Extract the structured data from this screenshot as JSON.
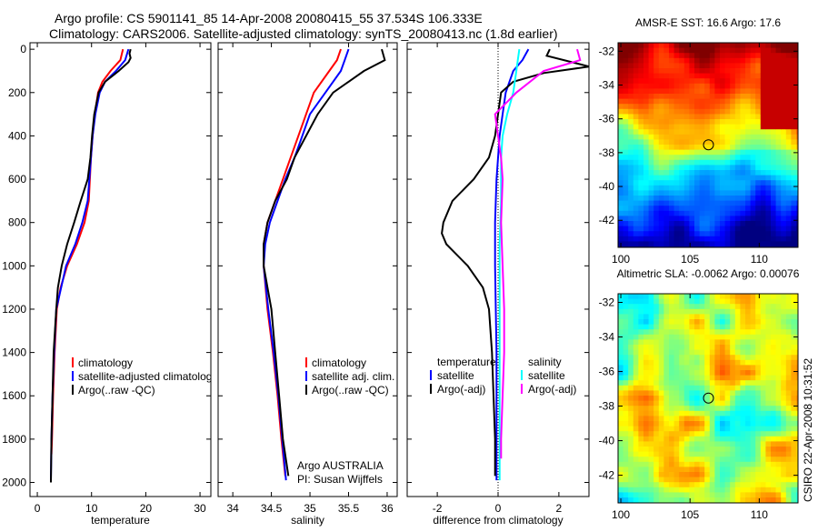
{
  "title": {
    "line1": "Argo profile: CS 5901141_85 14-Apr-2008 20080415_55 37.534S 106.333E",
    "line2": "Climatology: CARS2006. Satellite-adjusted climatology: synTS_20080413.nc (1.8d earlier)"
  },
  "side_label": "CSIRO 22-Apr-2008 10:31:52",
  "colors": {
    "red": "#ff0000",
    "blue": "#0000ff",
    "black": "#000000",
    "cyan": "#00ffff",
    "magenta": "#ff00ff"
  },
  "chart_data": [
    {
      "type": "line",
      "xlabel": "temperature",
      "ylabel": "",
      "xlim": [
        -1.35,
        32
      ],
      "ylim": [
        2065,
        -30
      ],
      "xticks": [
        0,
        10,
        20,
        30
      ],
      "yticks": [
        0,
        200,
        400,
        600,
        800,
        1000,
        1200,
        1400,
        1600,
        1800,
        2000
      ],
      "legend": [
        "climatology",
        "satellite-adjusted climatology",
        "Argo(..raw -QC)"
      ],
      "series": [
        {
          "name": "climatology",
          "color": "#ff0000",
          "points": [
            [
              15.8,
              0
            ],
            [
              15.3,
              50
            ],
            [
              13.5,
              100
            ],
            [
              12,
              150
            ],
            [
              11.2,
              200
            ],
            [
              10.6,
              300
            ],
            [
              10.2,
              400
            ],
            [
              9.9,
              500
            ],
            [
              9.7,
              600
            ],
            [
              9.5,
              700
            ],
            [
              8.7,
              800
            ],
            [
              7.3,
              900
            ],
            [
              5.5,
              1000
            ],
            [
              4.3,
              1100
            ],
            [
              3.6,
              1200
            ],
            [
              3.2,
              1400
            ],
            [
              2.9,
              1600
            ],
            [
              2.7,
              1800
            ],
            [
              2.6,
              1870
            ]
          ]
        },
        {
          "name": "satellite-adjusted climatology",
          "color": "#0000ff",
          "points": [
            [
              16.8,
              0
            ],
            [
              16.2,
              50
            ],
            [
              14.5,
              100
            ],
            [
              12.5,
              150
            ],
            [
              11.5,
              200
            ],
            [
              10.7,
              300
            ],
            [
              10.2,
              400
            ],
            [
              9.9,
              500
            ],
            [
              9.6,
              600
            ],
            [
              9.3,
              700
            ],
            [
              8.3,
              800
            ],
            [
              7,
              900
            ],
            [
              5.3,
              1000
            ],
            [
              3.5,
              1200
            ],
            [
              3.1,
              1400
            ],
            [
              2.8,
              1600
            ],
            [
              2.6,
              1800
            ],
            [
              2.5,
              1990
            ]
          ]
        },
        {
          "name": "Argo(..raw -QC)",
          "color": "#000000",
          "points": [
            [
              17.2,
              0
            ],
            [
              17,
              20
            ],
            [
              17.2,
              40
            ],
            [
              16.8,
              60
            ],
            [
              15,
              100
            ],
            [
              12.5,
              150
            ],
            [
              11.3,
              200
            ],
            [
              10.5,
              300
            ],
            [
              10.1,
              400
            ],
            [
              9.8,
              500
            ],
            [
              9.3,
              600
            ],
            [
              8,
              700
            ],
            [
              6.8,
              800
            ],
            [
              5.5,
              900
            ],
            [
              4.5,
              1000
            ],
            [
              3.8,
              1100
            ],
            [
              3.5,
              1200
            ],
            [
              3,
              1400
            ],
            [
              2.8,
              1600
            ],
            [
              2.6,
              1800
            ],
            [
              2.5,
              2000
            ]
          ]
        }
      ]
    },
    {
      "type": "line",
      "xlabel": "salinity",
      "xlim": [
        33.81,
        36.13
      ],
      "ylim": [
        2065,
        -30
      ],
      "xticks": [
        34,
        34.5,
        35,
        35.5,
        36
      ],
      "yticks": [
        0,
        200,
        400,
        600,
        800,
        1000,
        1200,
        1400,
        1600,
        1800,
        2000
      ],
      "legend": [
        "climatology",
        "satellite adj. clim.",
        "Argo(..raw -QC)"
      ],
      "annotations": [
        "Argo AUSTRALIA",
        "PI: Susan Wijffels"
      ],
      "series": [
        {
          "name": "climatology",
          "color": "#ff0000",
          "points": [
            [
              35.4,
              0
            ],
            [
              35.35,
              50
            ],
            [
              35.25,
              100
            ],
            [
              35.05,
              200
            ],
            [
              34.95,
              300
            ],
            [
              34.85,
              400
            ],
            [
              34.75,
              500
            ],
            [
              34.65,
              600
            ],
            [
              34.55,
              700
            ],
            [
              34.45,
              800
            ],
            [
              34.4,
              900
            ],
            [
              34.4,
              1000
            ],
            [
              34.45,
              1200
            ],
            [
              34.52,
              1400
            ],
            [
              34.58,
              1600
            ],
            [
              34.63,
              1800
            ],
            [
              34.68,
              1970
            ]
          ]
        },
        {
          "name": "satellite adj. clim.",
          "color": "#0000ff",
          "points": [
            [
              35.5,
              0
            ],
            [
              35.45,
              50
            ],
            [
              35.4,
              100
            ],
            [
              35.2,
              200
            ],
            [
              35.0,
              300
            ],
            [
              34.9,
              400
            ],
            [
              34.8,
              500
            ],
            [
              34.68,
              600
            ],
            [
              34.58,
              700
            ],
            [
              34.48,
              800
            ],
            [
              34.42,
              900
            ],
            [
              34.4,
              1000
            ],
            [
              34.46,
              1200
            ],
            [
              34.53,
              1400
            ],
            [
              34.59,
              1600
            ],
            [
              34.64,
              1800
            ],
            [
              34.69,
              1990
            ]
          ]
        },
        {
          "name": "Argo(..raw -QC)",
          "color": "#000000",
          "points": [
            [
              35.93,
              0
            ],
            [
              35.97,
              50
            ],
            [
              35.7,
              100
            ],
            [
              35.5,
              150
            ],
            [
              35.3,
              200
            ],
            [
              35.1,
              300
            ],
            [
              34.95,
              400
            ],
            [
              34.8,
              500
            ],
            [
              34.7,
              600
            ],
            [
              34.55,
              700
            ],
            [
              34.45,
              800
            ],
            [
              34.4,
              900
            ],
            [
              34.4,
              1000
            ],
            [
              34.45,
              1100
            ],
            [
              34.5,
              1200
            ],
            [
              34.55,
              1400
            ],
            [
              34.6,
              1600
            ],
            [
              34.65,
              1800
            ],
            [
              34.72,
              1970
            ]
          ]
        }
      ]
    },
    {
      "type": "line",
      "xlabel": "difference from climatology",
      "xlim": [
        -2.99,
        2.99
      ],
      "ylim": [
        2065,
        -30
      ],
      "xticks": [
        -2,
        0,
        2
      ],
      "yticks": [
        0,
        200,
        400,
        600,
        800,
        1000,
        1200,
        1400,
        1600,
        1800,
        2000
      ],
      "legend_headers": [
        "temperature",
        "salinity"
      ],
      "legend": [
        "satellite",
        "Argo(-adj)",
        "satellite",
        "Argo(-adj)"
      ],
      "series": [
        {
          "name": "temperature satellite",
          "color": "#0000ff",
          "points": [
            [
              1,
              0
            ],
            [
              0.8,
              50
            ],
            [
              0.5,
              100
            ],
            [
              0.25,
              200
            ],
            [
              0.15,
              300
            ],
            [
              0.05,
              400
            ],
            [
              0,
              500
            ],
            [
              -0.05,
              600
            ],
            [
              -0.1,
              800
            ],
            [
              -0.1,
              1000
            ],
            [
              -0.05,
              1400
            ],
            [
              -0.05,
              1800
            ],
            [
              -0.05,
              1990
            ]
          ]
        },
        {
          "name": "temperature Argo(-adj)",
          "color": "#000000",
          "points": [
            [
              1.7,
              0
            ],
            [
              1.6,
              30
            ],
            [
              3,
              80
            ],
            [
              1.5,
              110
            ],
            [
              0.5,
              150
            ],
            [
              0.1,
              200
            ],
            [
              0,
              300
            ],
            [
              -0.1,
              400
            ],
            [
              -0.3,
              500
            ],
            [
              -0.8,
              600
            ],
            [
              -1.5,
              700
            ],
            [
              -1.8,
              800
            ],
            [
              -1.85,
              850
            ],
            [
              -1.7,
              900
            ],
            [
              -1.0,
              1000
            ],
            [
              -0.5,
              1100
            ],
            [
              -0.3,
              1200
            ],
            [
              -0.2,
              1400
            ],
            [
              -0.15,
              1600
            ],
            [
              -0.1,
              1800
            ],
            [
              -0.1,
              1970
            ]
          ]
        },
        {
          "name": "salinity satellite",
          "color": "#00ffff",
          "points": [
            [
              0.7,
              0
            ],
            [
              0.65,
              50
            ],
            [
              0.6,
              100
            ],
            [
              0.5,
              200
            ],
            [
              0.3,
              300
            ],
            [
              0.15,
              400
            ],
            [
              0.1,
              500
            ],
            [
              0.1,
              700
            ],
            [
              0.05,
              900
            ],
            [
              0.05,
              1200
            ],
            [
              0.05,
              1600
            ],
            [
              0.05,
              1990
            ]
          ]
        },
        {
          "name": "salinity Argo(-adj)",
          "color": "#ff00ff",
          "points": [
            [
              2.6,
              0
            ],
            [
              2.7,
              50
            ],
            [
              1.5,
              100
            ],
            [
              0.6,
              200
            ],
            [
              -0.1,
              300
            ],
            [
              0,
              400
            ],
            [
              0.1,
              500
            ],
            [
              0.15,
              600
            ],
            [
              0.1,
              800
            ],
            [
              0.15,
              1000
            ],
            [
              0.2,
              1200
            ],
            [
              0.2,
              1400
            ],
            [
              0.15,
              1600
            ],
            [
              0.1,
              1800
            ],
            [
              0.1,
              1890
            ]
          ]
        }
      ]
    },
    {
      "type": "heatmap",
      "title": "AMSR-E SST: 16.6 Argo: 17.6",
      "xlim": [
        99.8,
        112.8
      ],
      "ylim": [
        -43.6,
        -31.5
      ],
      "xticks": [
        100,
        105,
        110
      ],
      "yticks": [
        -32,
        -34,
        -36,
        -38,
        -40,
        -42
      ],
      "marker": [
        106.333,
        -37.534
      ]
    },
    {
      "type": "heatmap",
      "title": "Altimetric SLA: -0.0062 Argo: 0.00076",
      "xlim": [
        99.8,
        112.8
      ],
      "ylim": [
        -43.6,
        -31.5
      ],
      "xticks": [
        100,
        105,
        110
      ],
      "yticks": [
        -32,
        -34,
        -36,
        -38,
        -40,
        -42
      ],
      "marker": [
        106.333,
        -37.534
      ]
    }
  ]
}
